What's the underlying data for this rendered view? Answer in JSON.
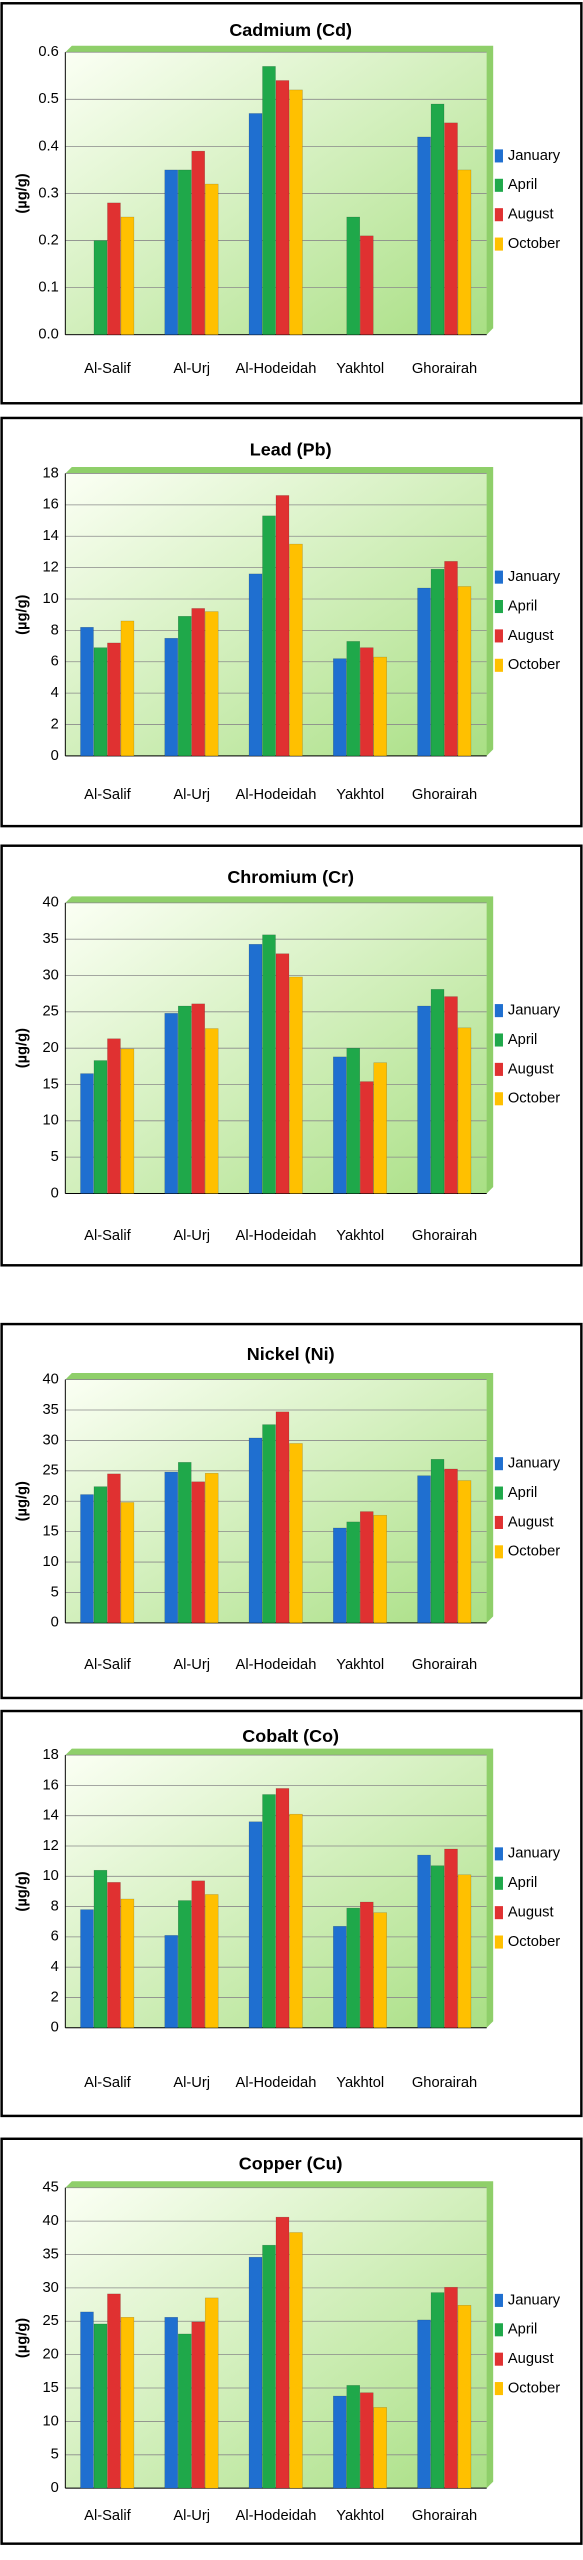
{
  "chart_data": [
    {
      "type": "bar",
      "title": "Cadmium (Cd)",
      "y_label": "(µg/g)",
      "categories": [
        "Al-Salif",
        "Al-Urj",
        "Al-Hodeidah",
        "Yakhtol",
        "Ghorairah"
      ],
      "series": [
        {
          "name": "January",
          "color": "#1f6fd0",
          "values": [
            null,
            0.35,
            0.47,
            null,
            0.42
          ]
        },
        {
          "name": "April",
          "color": "#1fa84a",
          "values": [
            0.2,
            0.35,
            0.57,
            0.25,
            0.49
          ]
        },
        {
          "name": "August",
          "color": "#e03131",
          "values": [
            0.28,
            0.39,
            0.54,
            0.21,
            0.45
          ]
        },
        {
          "name": "October",
          "color": "#ffc000",
          "values": [
            0.25,
            0.32,
            0.52,
            null,
            0.35
          ]
        }
      ],
      "ylim": [
        0,
        0.6
      ],
      "yticks": [
        {
          "value": 0,
          "label": "0.0"
        },
        0.1,
        0.2,
        0.3,
        0.4,
        0.5,
        0.6
      ],
      "grid": true,
      "legend": "right"
    },
    {
      "type": "bar",
      "title": "Lead (Pb)",
      "y_label": "(µg/g)",
      "categories": [
        "Al-Salif",
        "Al-Urj",
        "Al-Hodeidah",
        "Yakhtol",
        "Ghorairah"
      ],
      "series": [
        {
          "name": "January",
          "color": "#1f6fd0",
          "values": [
            8.2,
            7.5,
            11.6,
            6.2,
            10.7
          ]
        },
        {
          "name": "April",
          "color": "#1fa84a",
          "values": [
            6.9,
            8.9,
            15.3,
            7.3,
            11.9
          ]
        },
        {
          "name": "August",
          "color": "#e03131",
          "values": [
            7.2,
            9.4,
            16.6,
            6.9,
            12.4
          ]
        },
        {
          "name": "October",
          "color": "#ffc000",
          "values": [
            8.6,
            9.2,
            13.5,
            6.3,
            10.8
          ]
        }
      ],
      "ylim": [
        0,
        18
      ],
      "yticks": [
        0,
        2,
        4,
        6,
        8,
        10,
        12,
        14,
        16,
        18
      ],
      "grid": true,
      "legend": "right"
    },
    {
      "type": "bar",
      "title": "Chromium (Cr)",
      "y_label": "(µg/g)",
      "categories": [
        "Al-Salif",
        "Al-Urj",
        "Al-Hodeidah",
        "Yakhtol",
        "Ghorairah"
      ],
      "series": [
        {
          "name": "January",
          "color": "#1f6fd0",
          "values": [
            16.5,
            24.8,
            34.3,
            18.8,
            25.8
          ]
        },
        {
          "name": "April",
          "color": "#1fa84a",
          "values": [
            18.3,
            25.8,
            35.6,
            20,
            28.1
          ]
        },
        {
          "name": "August",
          "color": "#e03131",
          "values": [
            21.3,
            26.1,
            33,
            15.4,
            27.1
          ]
        },
        {
          "name": "October",
          "color": "#ffc000",
          "values": [
            19.9,
            22.7,
            29.8,
            18,
            22.8
          ]
        }
      ],
      "ylim": [
        0,
        40
      ],
      "yticks": [
        0,
        5,
        10,
        15,
        20,
        25,
        30,
        35,
        40
      ],
      "grid": true,
      "legend": "right"
    },
    {
      "type": "bar",
      "title": "Nickel (Ni)",
      "y_label": "(µg/g)",
      "categories": [
        "Al-Salif",
        "Al-Urj",
        "Al-Hodeidah",
        "Yakhtol",
        "Ghorairah"
      ],
      "series": [
        {
          "name": "January",
          "color": "#1f6fd0",
          "values": [
            21.1,
            24.8,
            30.4,
            15.6,
            24.2
          ]
        },
        {
          "name": "April",
          "color": "#1fa84a",
          "values": [
            22.4,
            26.4,
            32.6,
            16.6,
            26.9
          ]
        },
        {
          "name": "August",
          "color": "#e03131",
          "values": [
            24.5,
            23.2,
            34.7,
            18.3,
            25.3
          ]
        },
        {
          "name": "October",
          "color": "#ffc000",
          "values": [
            19.8,
            24.6,
            29.5,
            17.7,
            23.4
          ]
        }
      ],
      "ylim": [
        0,
        40
      ],
      "yticks": [
        0,
        5,
        10,
        15,
        20,
        25,
        30,
        35,
        40
      ],
      "grid": true,
      "legend": "right"
    },
    {
      "type": "bar",
      "title": "Cobalt (Co)",
      "y_label": "(µg/g)",
      "categories": [
        "Al-Salif",
        "Al-Urj",
        "Al-Hodeidah",
        "Yakhtol",
        "Ghorairah"
      ],
      "series": [
        {
          "name": "January",
          "color": "#1f6fd0",
          "values": [
            7.8,
            6.1,
            13.6,
            6.7,
            11.4
          ]
        },
        {
          "name": "April",
          "color": "#1fa84a",
          "values": [
            10.4,
            8.4,
            15.4,
            7.9,
            10.7
          ]
        },
        {
          "name": "August",
          "color": "#e03131",
          "values": [
            9.6,
            9.7,
            15.8,
            8.3,
            11.8
          ]
        },
        {
          "name": "October",
          "color": "#ffc000",
          "values": [
            8.5,
            8.8,
            14.1,
            7.6,
            10.1
          ]
        }
      ],
      "ylim": [
        0,
        18
      ],
      "yticks": [
        0,
        2,
        4,
        6,
        8,
        10,
        12,
        14,
        16,
        18
      ],
      "grid": true,
      "legend": "right"
    },
    {
      "type": "bar",
      "title": "Copper (Cu)",
      "y_label": "(µg/g)",
      "categories": [
        "Al-Salif",
        "Al-Urj",
        "Al-Hodeidah",
        "Yakhtol",
        "Ghorairah"
      ],
      "series": [
        {
          "name": "January",
          "color": "#1f6fd0",
          "values": [
            26.4,
            25.6,
            34.6,
            13.8,
            25.2
          ]
        },
        {
          "name": "April",
          "color": "#1fa84a",
          "values": [
            24.6,
            23.1,
            36.4,
            15.4,
            29.3
          ]
        },
        {
          "name": "August",
          "color": "#e03131",
          "values": [
            29.1,
            24.9,
            40.6,
            14.3,
            30.1
          ]
        },
        {
          "name": "October",
          "color": "#ffc000",
          "values": [
            25.6,
            28.5,
            38.3,
            12.1,
            27.4
          ]
        }
      ],
      "ylim": [
        0,
        45
      ],
      "yticks": [
        0,
        5,
        10,
        15,
        20,
        25,
        30,
        35,
        40,
        45
      ],
      "grid": true,
      "legend": "right"
    }
  ]
}
